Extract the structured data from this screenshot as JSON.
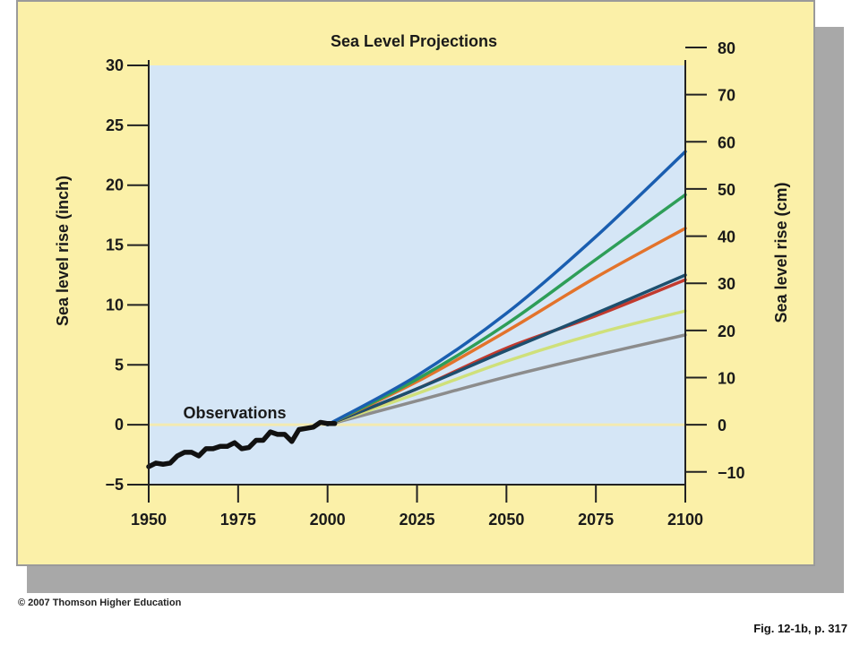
{
  "chart_data": {
    "type": "line",
    "title": "Sea Level Projections",
    "xlabel": "",
    "ylabel_left": "Sea level rise (inch)",
    "ylabel_right": "Sea level rise (cm)",
    "x_ticks": [
      1950,
      1975,
      2000,
      2025,
      2050,
      2075,
      2100
    ],
    "y_left_ticks": [
      30,
      25,
      20,
      15,
      10,
      5,
      0,
      -5
    ],
    "y_right_ticks": [
      80,
      70,
      60,
      50,
      40,
      30,
      20,
      10,
      0,
      -10
    ],
    "y_left_display": {
      "-5": "−5"
    },
    "y_right_display": {
      "-10": "−10"
    },
    "xlim": [
      1950,
      2100
    ],
    "ylim_inch": [
      -5,
      30
    ],
    "annotation": "Observations",
    "grid": false,
    "observations": {
      "color": "#111111",
      "x": [
        1950,
        1952,
        1954,
        1956,
        1958,
        1960,
        1962,
        1964,
        1966,
        1968,
        1970,
        1972,
        1974,
        1976,
        1978,
        1980,
        1982,
        1984,
        1986,
        1988,
        1990,
        1992,
        1994,
        1996,
        1998,
        2000,
        2002
      ],
      "y": [
        -3.5,
        -3.2,
        -3.3,
        -3.2,
        -2.6,
        -2.3,
        -2.3,
        -2.6,
        -2.0,
        -2.0,
        -1.8,
        -1.8,
        -1.5,
        -2.0,
        -1.9,
        -1.3,
        -1.3,
        -0.6,
        -0.8,
        -0.8,
        -1.4,
        -0.4,
        -0.3,
        -0.2,
        0.2,
        0.1,
        0.1
      ]
    },
    "series": [
      {
        "color": "#1a5eb0",
        "x": [
          2000,
          2025,
          2050,
          2075,
          2100
        ],
        "y": [
          0,
          4.1,
          9.3,
          15.7,
          22.8
        ]
      },
      {
        "color": "#2e9e58",
        "x": [
          2000,
          2025,
          2050,
          2075,
          2100
        ],
        "y": [
          0,
          3.8,
          8.4,
          13.8,
          19.2
        ]
      },
      {
        "color": "#e3732b",
        "x": [
          2000,
          2025,
          2050,
          2075,
          2100
        ],
        "y": [
          0,
          3.6,
          7.8,
          12.3,
          16.4
        ]
      },
      {
        "color": "#1d4f6e",
        "x": [
          2000,
          2025,
          2050,
          2075,
          2100
        ],
        "y": [
          0,
          3.0,
          6.2,
          9.3,
          12.5
        ]
      },
      {
        "color": "#c23a2e",
        "x": [
          2000,
          2025,
          2050,
          2075,
          2100
        ],
        "y": [
          0,
          3.0,
          6.4,
          9.1,
          12.1
        ]
      },
      {
        "color": "#cfe07a",
        "x": [
          2000,
          2025,
          2050,
          2075,
          2100
        ],
        "y": [
          0,
          2.6,
          5.3,
          7.6,
          9.5
        ]
      },
      {
        "color": "#8c8c8c",
        "x": [
          2000,
          2025,
          2050,
          2075,
          2100
        ],
        "y": [
          0,
          2.0,
          4.0,
          5.8,
          7.5
        ]
      }
    ]
  },
  "colors": {
    "card_background": "#fbf0a8",
    "plot_background": "#d5e6f6",
    "zero_line": "#f3eab0"
  },
  "footer": {
    "copyright": "© 2007 Thomson Higher Education",
    "caption": "Fig. 12-1b, p. 317"
  }
}
